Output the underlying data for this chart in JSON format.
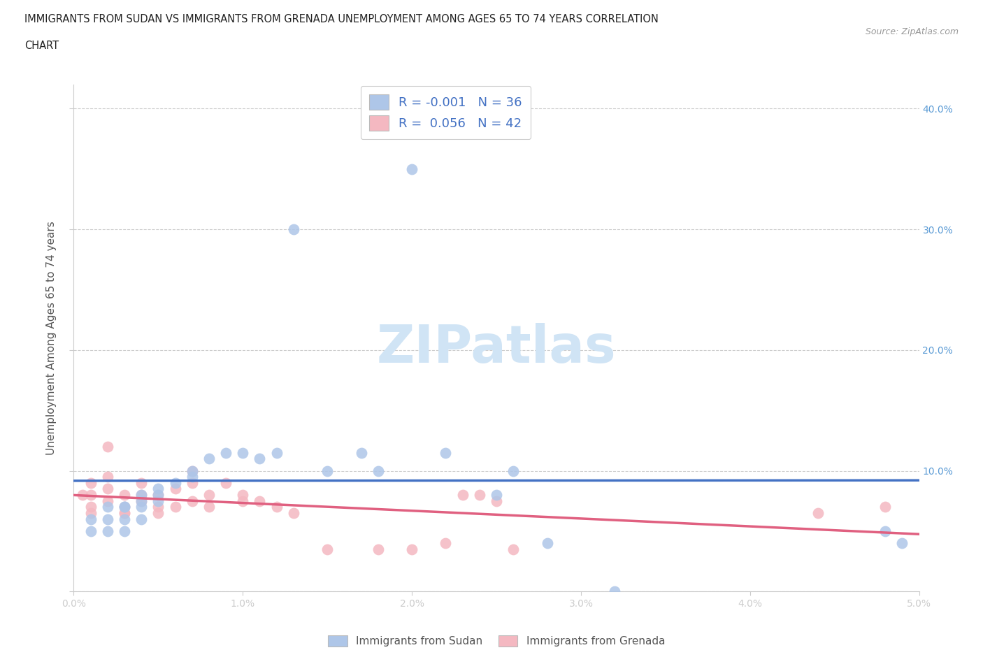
{
  "title_line1": "IMMIGRANTS FROM SUDAN VS IMMIGRANTS FROM GRENADA UNEMPLOYMENT AMONG AGES 65 TO 74 YEARS CORRELATION",
  "title_line2": "CHART",
  "source_text": "Source: ZipAtlas.com",
  "ylabel": "Unemployment Among Ages 65 to 74 years",
  "xlim": [
    0.0,
    0.05
  ],
  "ylim": [
    0.0,
    0.42
  ],
  "xticks": [
    0.0,
    0.01,
    0.02,
    0.03,
    0.04,
    0.05
  ],
  "xticklabels": [
    "0.0%",
    "1.0%",
    "2.0%",
    "3.0%",
    "4.0%",
    "5.0%"
  ],
  "yticks": [
    0.0,
    0.1,
    0.2,
    0.3,
    0.4
  ],
  "yticklabels_right": [
    "",
    "10.0%",
    "20.0%",
    "30.0%",
    "40.0%"
  ],
  "grid_color": "#cccccc",
  "background_color": "#ffffff",
  "sudan_color": "#aec6e8",
  "grenada_color": "#f4b8c1",
  "sudan_line_color": "#4472c4",
  "grenada_line_color": "#e06080",
  "sudan_R": "-0.001",
  "sudan_N": "36",
  "grenada_R": "0.056",
  "grenada_N": "42",
  "legend_label_sudan": "Immigrants from Sudan",
  "legend_label_grenada": "Immigrants from Grenada",
  "watermark_text": "ZIPatlas",
  "watermark_color": "#d0e4f5",
  "sudan_x": [
    0.001,
    0.001,
    0.002,
    0.002,
    0.002,
    0.003,
    0.003,
    0.003,
    0.003,
    0.004,
    0.004,
    0.004,
    0.004,
    0.005,
    0.005,
    0.005,
    0.006,
    0.007,
    0.007,
    0.008,
    0.009,
    0.01,
    0.011,
    0.012,
    0.013,
    0.015,
    0.017,
    0.018,
    0.02,
    0.022,
    0.025,
    0.026,
    0.028,
    0.032,
    0.048,
    0.049
  ],
  "sudan_y": [
    0.05,
    0.06,
    0.07,
    0.06,
    0.05,
    0.07,
    0.07,
    0.05,
    0.06,
    0.08,
    0.07,
    0.06,
    0.075,
    0.075,
    0.08,
    0.085,
    0.09,
    0.095,
    0.1,
    0.11,
    0.115,
    0.115,
    0.11,
    0.115,
    0.3,
    0.1,
    0.115,
    0.1,
    0.35,
    0.115,
    0.08,
    0.1,
    0.04,
    0.0,
    0.05,
    0.04
  ],
  "grenada_x": [
    0.0005,
    0.001,
    0.001,
    0.001,
    0.001,
    0.002,
    0.002,
    0.002,
    0.002,
    0.003,
    0.003,
    0.003,
    0.003,
    0.004,
    0.004,
    0.004,
    0.005,
    0.005,
    0.005,
    0.006,
    0.006,
    0.007,
    0.007,
    0.007,
    0.008,
    0.008,
    0.009,
    0.01,
    0.01,
    0.011,
    0.012,
    0.013,
    0.015,
    0.018,
    0.02,
    0.022,
    0.023,
    0.024,
    0.025,
    0.026,
    0.044,
    0.048
  ],
  "grenada_y": [
    0.08,
    0.07,
    0.08,
    0.065,
    0.09,
    0.075,
    0.085,
    0.095,
    0.12,
    0.07,
    0.08,
    0.065,
    0.065,
    0.075,
    0.08,
    0.09,
    0.07,
    0.08,
    0.065,
    0.085,
    0.07,
    0.075,
    0.09,
    0.1,
    0.07,
    0.08,
    0.09,
    0.075,
    0.08,
    0.075,
    0.07,
    0.065,
    0.035,
    0.035,
    0.035,
    0.04,
    0.08,
    0.08,
    0.075,
    0.035,
    0.065,
    0.07
  ]
}
